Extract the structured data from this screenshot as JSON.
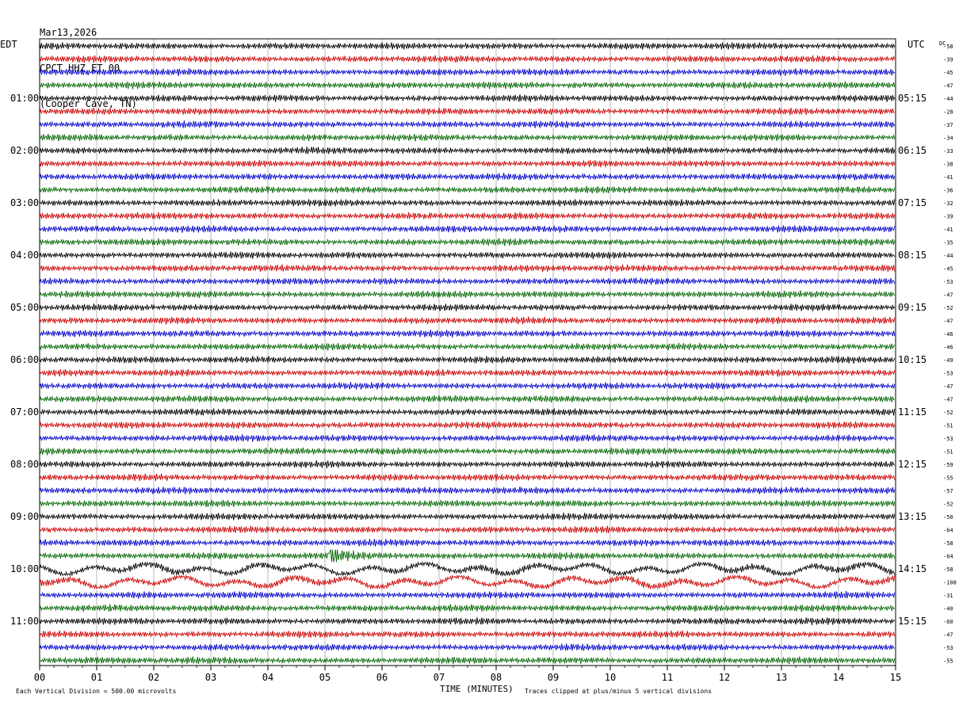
{
  "header": {
    "date": "Mar13,2026",
    "station": "CPCT HHZ ET 00",
    "location": "(Cooper Cave, TN)"
  },
  "left_tz": "EDT",
  "right_tz": "UTC",
  "dc_label": "DC",
  "footer": {
    "scale_note": "Each Vertical Division =  500.00 microvolts",
    "xlabel": "TIME (MINUTES)",
    "clip_note": "Traces clipped at plus/minus 5 vertical divisions"
  },
  "chart_data": {
    "type": "line",
    "title": "CPCT HHZ ET 00 (Cooper Cave, TN) Mar13,2026",
    "xlabel": "TIME (MINUTES)",
    "x_ticks": [
      "00",
      "01",
      "02",
      "03",
      "04",
      "05",
      "06",
      "07",
      "08",
      "09",
      "10",
      "11",
      "12",
      "13",
      "14",
      "15"
    ],
    "xlim": [
      0,
      15
    ],
    "trace_colors": [
      "#000000",
      "#cc0000",
      "#0000cc",
      "#006600"
    ],
    "left_hour_labels": [
      "01:00",
      "02:00",
      "03:00",
      "04:00",
      "05:00",
      "06:00",
      "07:00",
      "08:00",
      "09:00",
      "10:00",
      "11:00"
    ],
    "right_hour_labels": [
      "05:15",
      "06:15",
      "07:15",
      "08:15",
      "09:15",
      "10:15",
      "11:15",
      "12:15",
      "13:15",
      "14:15",
      "15:15"
    ],
    "dc_offsets": [
      -58,
      -39,
      -45,
      -47,
      -44,
      -28,
      -37,
      -34,
      -33,
      -38,
      -41,
      -36,
      -32,
      -39,
      -41,
      -35,
      -44,
      -45,
      -53,
      -47,
      -52,
      -47,
      -46,
      -46,
      -49,
      -53,
      -47,
      -47,
      -52,
      -51,
      -53,
      -51,
      -59,
      -55,
      -57,
      -52,
      -50,
      -64,
      -58,
      -64,
      -58,
      -108,
      -31,
      -40,
      -60,
      -47,
      -53,
      -55
    ],
    "event_traces": [
      {
        "trace": 39,
        "start_minute": 5.05,
        "end_minute": 7.3
      },
      {
        "trace": 40,
        "start_minute": 0,
        "end_minute": 15
      },
      {
        "trace": 41,
        "start_minute": 0,
        "end_minute": 15
      }
    ],
    "grid": true
  }
}
